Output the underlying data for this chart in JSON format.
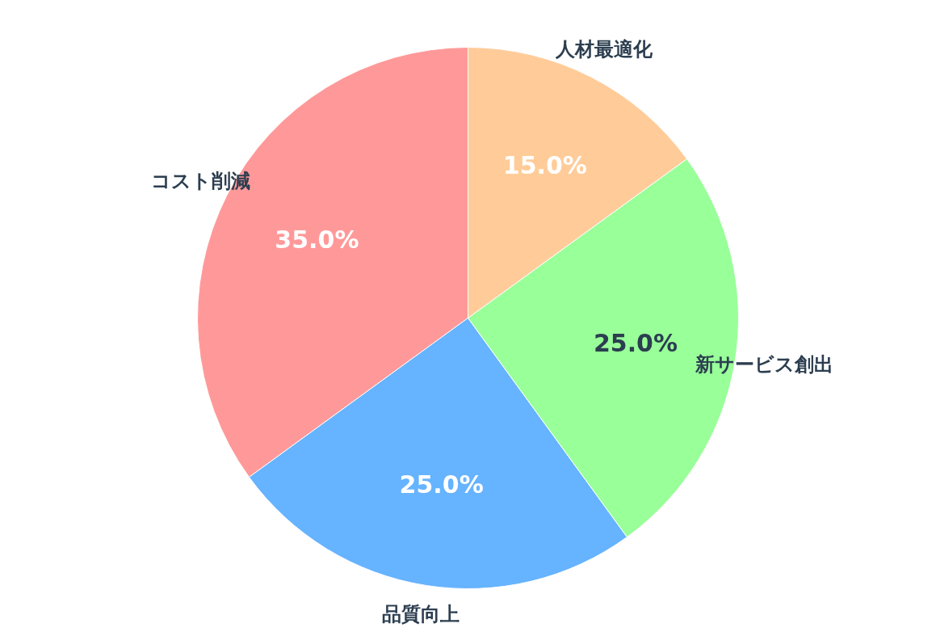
{
  "chart_data": {
    "type": "pie",
    "categories": [
      "コスト削減",
      "品質向上",
      "新サービス創出",
      "人材最適化"
    ],
    "values": [
      35,
      25,
      25,
      15
    ],
    "colors": [
      "#ff9999",
      "#66b3ff",
      "#99ff99",
      "#ffcc99"
    ],
    "value_labels": [
      "35.0%",
      "25.0%",
      "25.0%",
      "15.0%"
    ]
  }
}
